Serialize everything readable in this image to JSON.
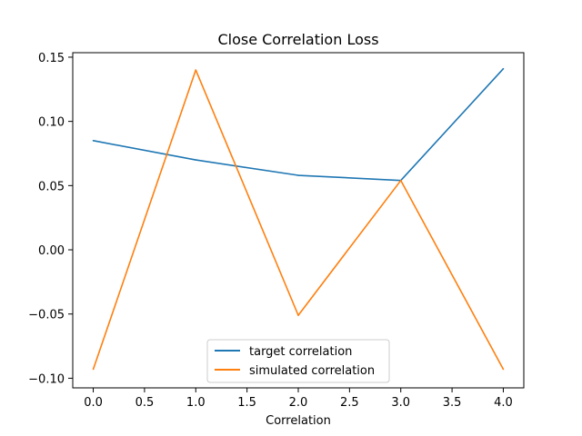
{
  "chart_data": {
    "type": "line",
    "title": "Close Correlation Loss",
    "xlabel": "Correlation",
    "ylabel": "",
    "xlim": [
      -0.2,
      4.2
    ],
    "ylim": [
      -0.1075,
      0.1535
    ],
    "xticks": [
      0.0,
      0.5,
      1.0,
      1.5,
      2.0,
      2.5,
      3.0,
      3.5,
      4.0
    ],
    "xtick_labels": [
      "0.0",
      "0.5",
      "1.0",
      "1.5",
      "2.0",
      "2.5",
      "3.0",
      "3.5",
      "4.0"
    ],
    "yticks": [
      -0.1,
      -0.05,
      0.0,
      0.05,
      0.1,
      0.15
    ],
    "ytick_labels": [
      "−0.10",
      "−0.05",
      "0.00",
      "0.05",
      "0.10",
      "0.15"
    ],
    "grid": false,
    "legend_position": "lower-center",
    "x": [
      0,
      1,
      2,
      3,
      4
    ],
    "series": [
      {
        "name": "target correlation",
        "color": "#1f77b4",
        "values": [
          0.085,
          0.07,
          0.058,
          0.054,
          0.141
        ]
      },
      {
        "name": "simulated correlation",
        "color": "#ff7f0e",
        "values": [
          -0.093,
          0.14,
          -0.051,
          0.054,
          -0.093
        ]
      }
    ]
  }
}
